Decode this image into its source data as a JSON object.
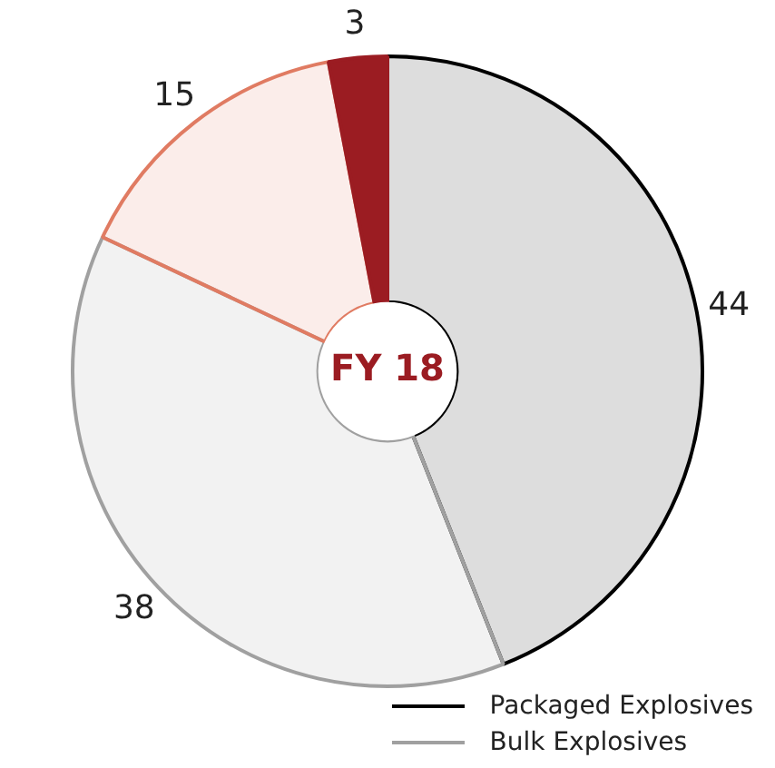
{
  "chart_data": {
    "type": "donut",
    "title": "FY 18",
    "categories": [
      "Packaged Explosives",
      "Bulk Explosives",
      null,
      null
    ],
    "values": [
      44,
      38,
      15,
      3
    ],
    "colors": [
      "#000000",
      "#a0a0a0",
      "#e07b62",
      "#9b1c22"
    ],
    "data_labels": true,
    "legend": "bottom right"
  }
}
